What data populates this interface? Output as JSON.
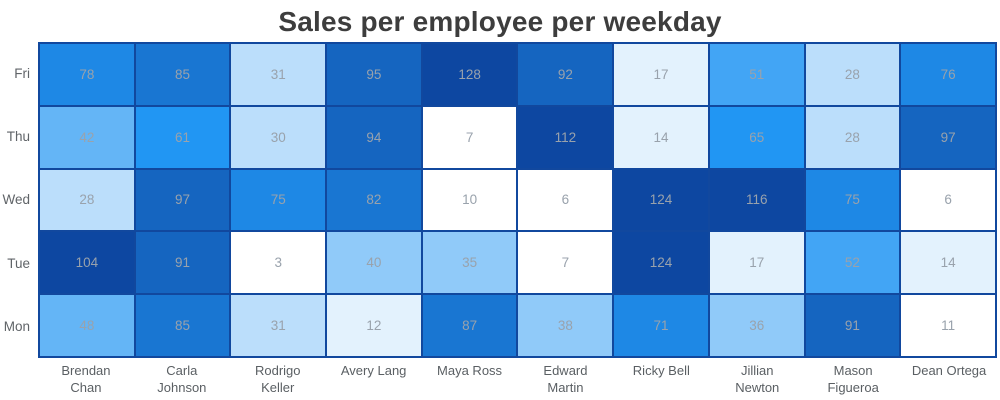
{
  "chart_data": {
    "type": "heatmap",
    "title": "Sales per employee per weekday",
    "xlabel": "",
    "ylabel": "",
    "x_categories": [
      "Brendan Chan",
      "Carla Johnson",
      "Rodrigo Keller",
      "Avery Lang",
      "Maya Ross",
      "Edward Martin",
      "Ricky Bell",
      "Jillian Newton",
      "Mason Figueroa",
      "Dean Ortega"
    ],
    "x_label_lines": [
      [
        "Brendan",
        "Chan"
      ],
      [
        "Carla",
        "Johnson"
      ],
      [
        "Rodrigo",
        "Keller"
      ],
      [
        "Avery Lang"
      ],
      [
        "Maya Ross"
      ],
      [
        "Edward",
        "Martin"
      ],
      [
        "Ricky Bell"
      ],
      [
        "Jillian",
        "Newton"
      ],
      [
        "Mason",
        "Figueroa"
      ],
      [
        "Dean Ortega"
      ]
    ],
    "y_categories": [
      "Fri",
      "Thu",
      "Wed",
      "Tue",
      "Mon"
    ],
    "values": [
      [
        78,
        85,
        31,
        95,
        128,
        92,
        17,
        51,
        28,
        76
      ],
      [
        42,
        61,
        30,
        94,
        7,
        112,
        14,
        65,
        28,
        97
      ],
      [
        28,
        97,
        75,
        82,
        10,
        6,
        124,
        116,
        75,
        6
      ],
      [
        104,
        91,
        3,
        40,
        35,
        7,
        124,
        17,
        52,
        14
      ],
      [
        48,
        85,
        31,
        12,
        87,
        38,
        71,
        36,
        91,
        11
      ]
    ],
    "min_value": 3,
    "max_value": 128,
    "legend": "none",
    "grid_line_color": "#11489E",
    "cell_text_color": "#99A2AC",
    "color_scale": {
      "palette": [
        "#FFFFFF",
        "#E3F2FD",
        "#BBDEFB",
        "#90CAF9",
        "#64B5F6",
        "#42A5F5",
        "#2196F3",
        "#1E88E5",
        "#1976D2",
        "#1565C0",
        "#0D47A1"
      ],
      "thresholds": [
        12,
        23,
        34,
        41,
        50,
        56,
        68,
        80,
        89,
        100
      ]
    }
  }
}
